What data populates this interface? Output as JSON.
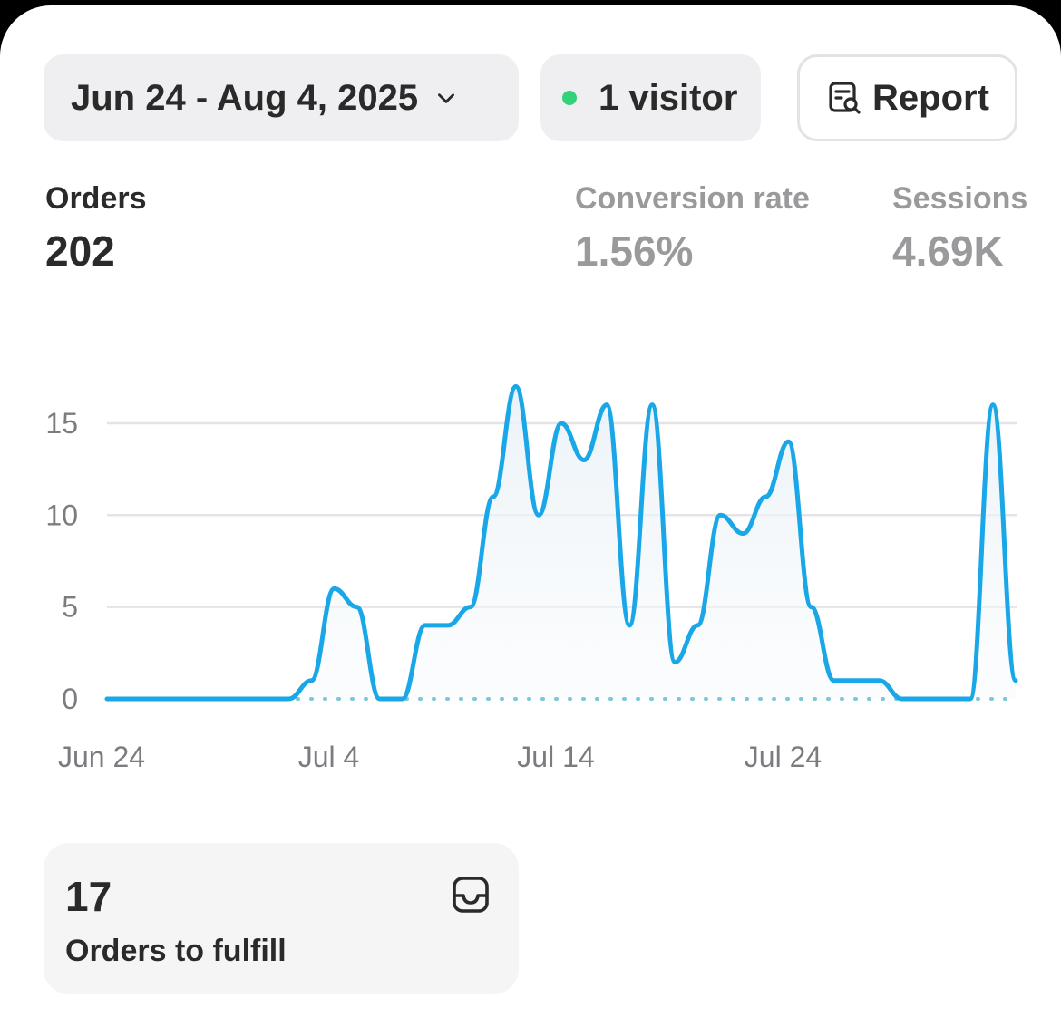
{
  "header": {
    "date_range": "Jun 24 - Aug 4, 2025",
    "visitors": "1 visitor",
    "report_label": "Report"
  },
  "metrics": [
    {
      "label": "Orders",
      "value": "202"
    },
    {
      "label": "Conversion rate",
      "value": "1.56%"
    },
    {
      "label": "Sessions",
      "value": "4.69K"
    }
  ],
  "colors": {
    "line": "#1aa7e8",
    "live_dot": "#33d17a"
  },
  "chart_data": {
    "type": "line",
    "x_tick_labels": [
      "Jun 24",
      "Jul 4",
      "Jul 14",
      "Jul 24"
    ],
    "y_ticks": [
      0,
      5,
      10,
      15
    ],
    "ylim": [
      0,
      17
    ],
    "grid": true,
    "series": [
      {
        "start_date": "Jun 24",
        "values": [
          0,
          0,
          0,
          0,
          0,
          0,
          0,
          0,
          0,
          1,
          6,
          5,
          0,
          0,
          4,
          4,
          5,
          11,
          17,
          10,
          15,
          13,
          16,
          4,
          16,
          2,
          4,
          10,
          9,
          11,
          14,
          5,
          1,
          1,
          1,
          0,
          0,
          0,
          0,
          16,
          1
        ]
      }
    ]
  },
  "fulfill": {
    "count": "17",
    "label": "Orders to fulfill",
    "icon": "inbox-icon"
  }
}
